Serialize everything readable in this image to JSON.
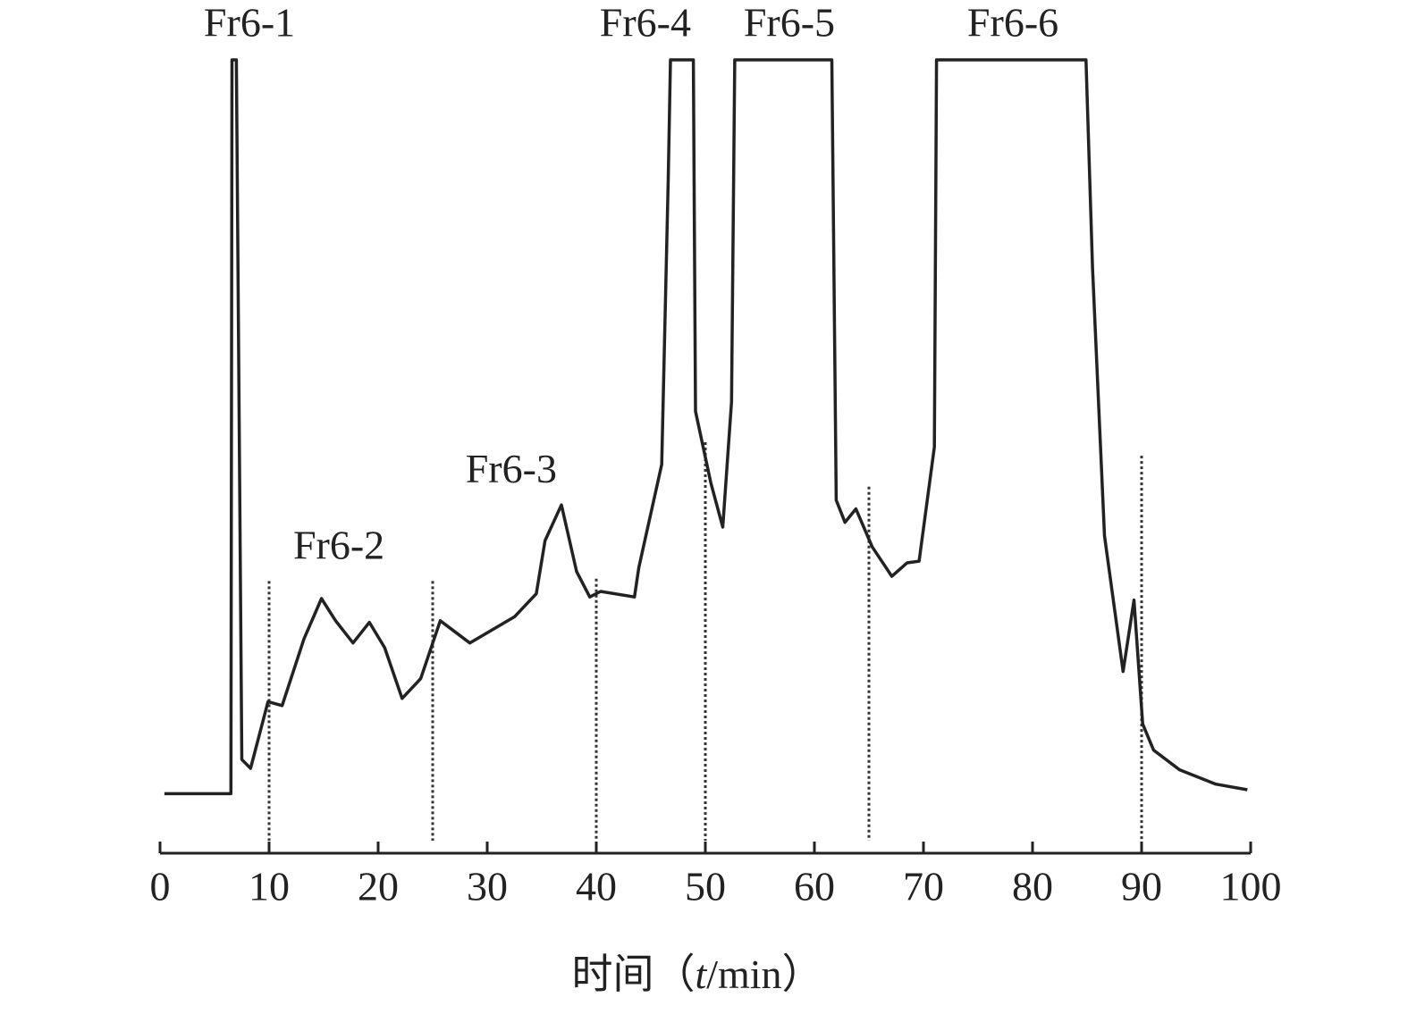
{
  "chart_data": {
    "type": "line",
    "x_label": {
      "prefix": "时间（",
      "italic": "t",
      "suffix": "/min）"
    },
    "xlim": [
      0,
      100
    ],
    "xticks": [
      0,
      10,
      20,
      30,
      40,
      50,
      60,
      70,
      80,
      90,
      100
    ],
    "ylim": [
      0,
      100
    ],
    "color": "#222222",
    "x": [
      0.4,
      6.5,
      6.6,
      7.0,
      7.5,
      8.3,
      9.9,
      11.2,
      13.2,
      14.8,
      16.1,
      17.7,
      19.2,
      20.6,
      22.2,
      23.9,
      25.7,
      28.4,
      32.5,
      34.5,
      35.3,
      36.8,
      38.2,
      39.4,
      40.4,
      43.5,
      43.9,
      46.0,
      46.6,
      46.8,
      48.9,
      49.1,
      50.5,
      51.6,
      52.4,
      52.7,
      61.6,
      62.0,
      62.8,
      63.8,
      65.3,
      67.1,
      68.5,
      69.6,
      71.0,
      71.2,
      84.9,
      85.5,
      86.6,
      88.3,
      89.3,
      90.1,
      91.1,
      93.5,
      96.8,
      99.7
    ],
    "values": [
      7.5,
      7.5,
      100,
      100,
      11.8,
      10.7,
      19.1,
      18.6,
      27.0,
      32.1,
      29.3,
      26.5,
      29.1,
      25.9,
      19.5,
      22.0,
      29.3,
      26.5,
      29.8,
      32.7,
      39.4,
      43.9,
      35.5,
      32.3,
      33.0,
      32.3,
      36.0,
      49.0,
      85,
      100,
      100,
      55.7,
      46.7,
      41.1,
      56.9,
      100,
      100,
      44.5,
      41.7,
      43.4,
      38.6,
      34.9,
      36.6,
      36.8,
      51.2,
      100,
      100,
      73.8,
      40.0,
      22.9,
      31.9,
      16.3,
      13.0,
      10.5,
      8.7,
      8.0
    ],
    "dividers": [
      {
        "x": 10,
        "top": 34.3
      },
      {
        "x": 25,
        "top": 34.3
      },
      {
        "x": 40,
        "top": 34.6
      },
      {
        "x": 50,
        "top": 51.8
      },
      {
        "x": 65,
        "top": 46.2
      },
      {
        "x": 90,
        "top": 50.1
      }
    ],
    "annotations": [
      {
        "text": "Fr6-1",
        "x": 8.2,
        "y": 104.2
      },
      {
        "text": "Fr6-2",
        "x": 16.4,
        "y": 38.3
      },
      {
        "text": "Fr6-3",
        "x": 32.2,
        "y": 47.9
      },
      {
        "text": "Fr6-4",
        "x": 44.5,
        "y": 104.2
      },
      {
        "text": "Fr6-5",
        "x": 57.7,
        "y": 104.2
      },
      {
        "text": "Fr6-6",
        "x": 78.2,
        "y": 104.2
      }
    ]
  }
}
